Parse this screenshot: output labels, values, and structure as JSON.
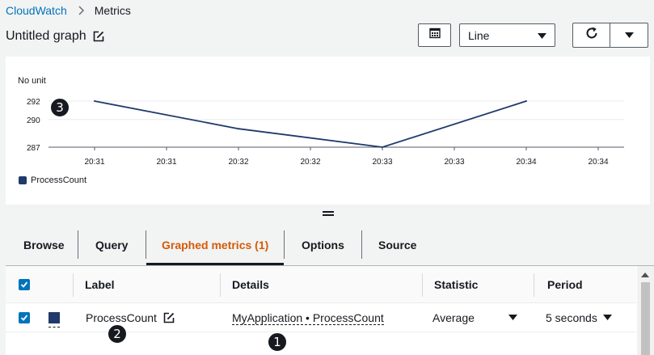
{
  "breadcrumb": {
    "service": "CloudWatch",
    "current": "Metrics"
  },
  "graph": {
    "title": "Untitled graph"
  },
  "toolbar": {
    "graph_type": "Line"
  },
  "chart_data": {
    "type": "line",
    "ylabel": "No unit",
    "y_ticks": [
      "292",
      "290",
      "287"
    ],
    "ylim": [
      287,
      292
    ],
    "x_ticks": [
      "20:31",
      "20:31",
      "20:32",
      "20:32",
      "20:33",
      "20:33",
      "20:34",
      "20:34"
    ],
    "series": [
      {
        "name": "ProcessCount",
        "color": "#1f3a6b",
        "points": [
          {
            "t": "20:31",
            "v": 292
          },
          {
            "t": "20:32",
            "v": 289
          },
          {
            "t": "20:33",
            "v": 287
          },
          {
            "t": "20:34",
            "v": 292
          }
        ]
      }
    ]
  },
  "tabs": [
    {
      "label": "Browse",
      "active": false
    },
    {
      "label": "Query",
      "active": false
    },
    {
      "label": "Graphed metrics (1)",
      "active": true
    },
    {
      "label": "Options",
      "active": false
    },
    {
      "label": "Source",
      "active": false
    }
  ],
  "table": {
    "headers": {
      "label": "Label",
      "details": "Details",
      "statistic": "Statistic",
      "period": "Period"
    },
    "rows": [
      {
        "label": "ProcessCount",
        "details": "MyApplication • ProcessCount",
        "statistic": "Average",
        "period": "5 seconds",
        "color": "#1f3a6b"
      }
    ]
  },
  "badges": [
    "1",
    "2",
    "3"
  ]
}
